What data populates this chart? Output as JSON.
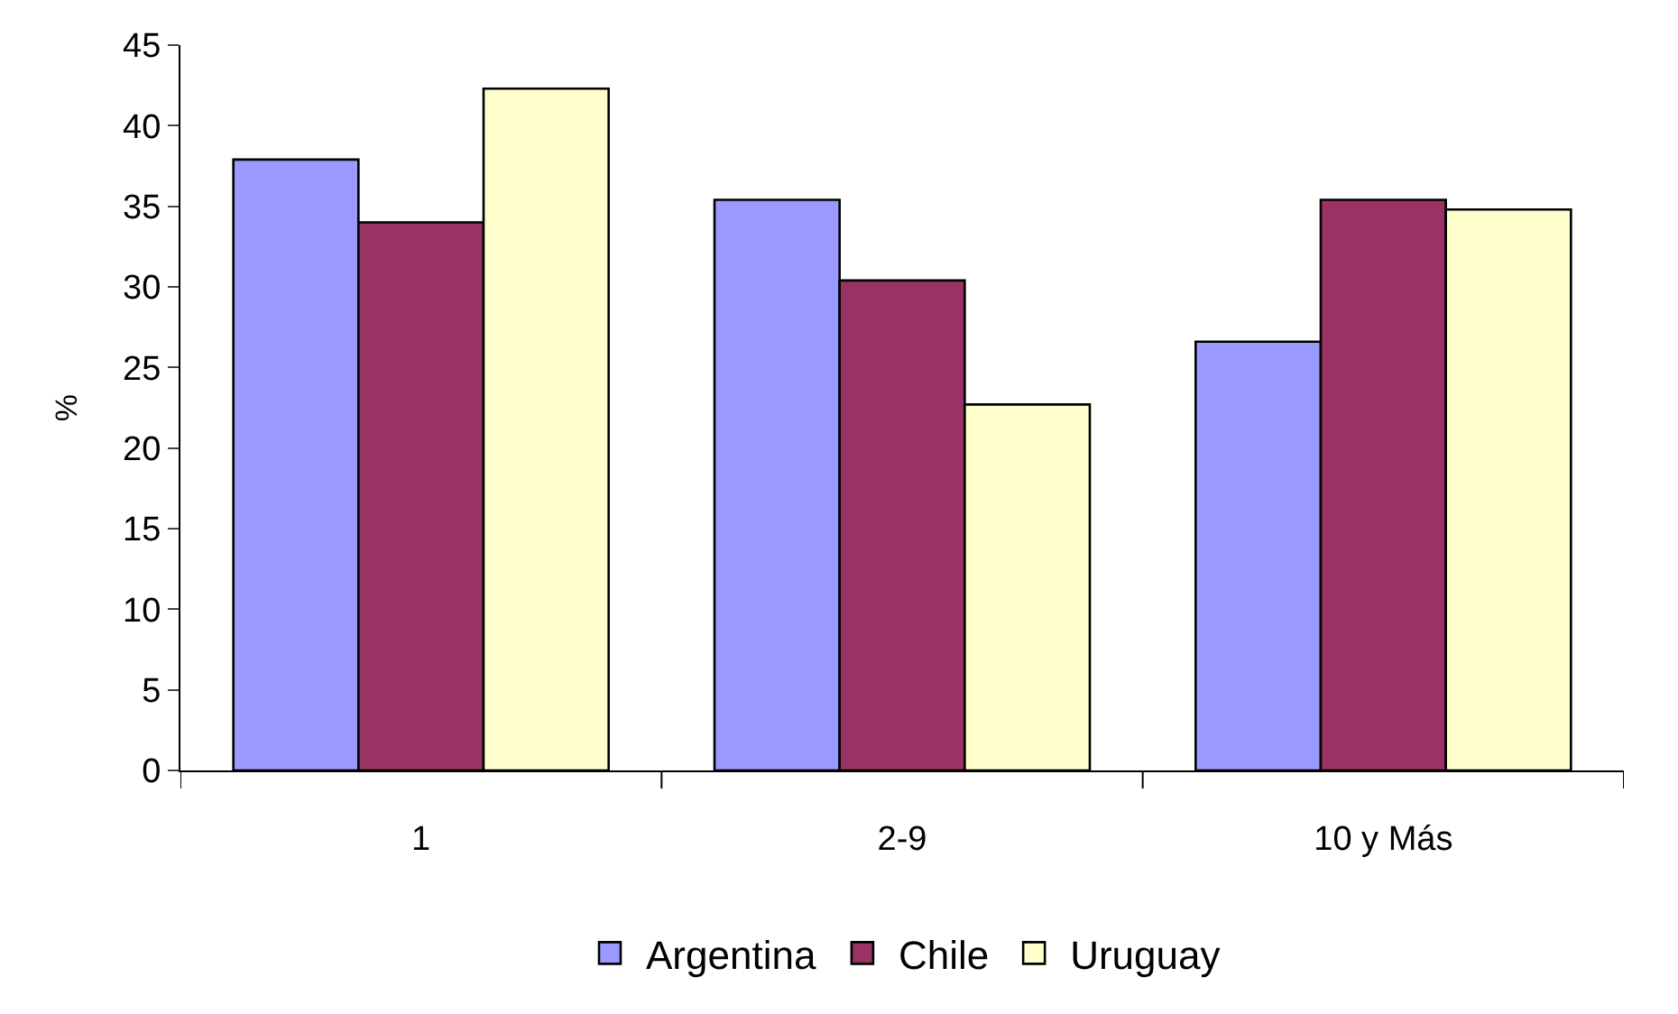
{
  "chart_data": {
    "type": "bar",
    "ylabel": "%",
    "categories": [
      "1",
      "2-9",
      "10 y Más"
    ],
    "series": [
      {
        "name": "Argentina",
        "color": "#9999ff",
        "values": [
          37.9,
          35.4,
          26.6
        ]
      },
      {
        "name": "Chile",
        "color": "#993366",
        "values": [
          34.0,
          30.4,
          35.4
        ]
      },
      {
        "name": "Uruguay",
        "color": "#ffffcc",
        "values": [
          42.3,
          22.7,
          34.8
        ]
      }
    ],
    "ylim": [
      0,
      45
    ],
    "yticks": [
      0,
      5,
      10,
      15,
      20,
      25,
      30,
      35,
      40,
      45
    ],
    "grid": false,
    "legend": "bottom"
  }
}
